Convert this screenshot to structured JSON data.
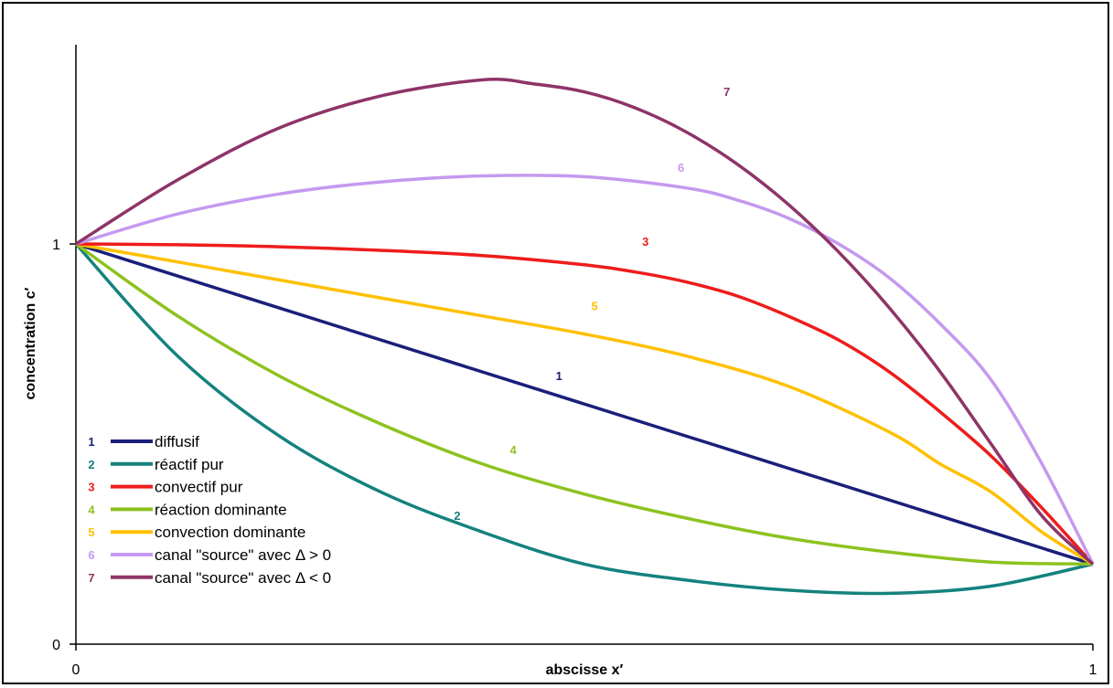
{
  "chart_data": {
    "type": "line",
    "xlabel": "abscisse x′",
    "ylabel": "concentration c′",
    "xlim": [
      0,
      1
    ],
    "ylim": [
      0,
      1.5
    ],
    "x_ticks": [
      "0",
      "1"
    ],
    "y_ticks": [
      "0",
      "1"
    ],
    "grid": false,
    "legend_position": "bottom-left",
    "series": [
      {
        "id": "1",
        "name": "diffusif",
        "color": "#1a1f7a",
        "x": [
          0,
          1
        ],
        "y": [
          1,
          0.2
        ]
      },
      {
        "id": "2",
        "name": "réactif pur",
        "color": "#14827e",
        "x": [
          0,
          0.1,
          0.2,
          0.3,
          0.4,
          0.5,
          0.6,
          0.7,
          0.8,
          0.9,
          1
        ],
        "y": [
          1,
          0.72,
          0.52,
          0.38,
          0.28,
          0.2,
          0.16,
          0.135,
          0.127,
          0.145,
          0.2
        ]
      },
      {
        "id": "3",
        "name": "convectif pur",
        "color": "#ee1c1c",
        "x": [
          0,
          0.1,
          0.2,
          0.3,
          0.4,
          0.5,
          0.55,
          0.6,
          0.65,
          0.7,
          0.75,
          0.8,
          0.85,
          0.9,
          0.95,
          1
        ],
        "y": [
          1,
          0.998,
          0.993,
          0.984,
          0.971,
          0.948,
          0.93,
          0.905,
          0.87,
          0.82,
          0.76,
          0.68,
          0.58,
          0.47,
          0.34,
          0.2
        ]
      },
      {
        "id": "4",
        "name": "réaction dominante",
        "color": "#8dc21f",
        "x": [
          0,
          0.1,
          0.2,
          0.3,
          0.4,
          0.5,
          0.6,
          0.7,
          0.8,
          0.9,
          1
        ],
        "y": [
          1,
          0.82,
          0.67,
          0.55,
          0.45,
          0.375,
          0.315,
          0.265,
          0.23,
          0.205,
          0.2
        ]
      },
      {
        "id": "5",
        "name": "convection dominante",
        "color": "#ffc000",
        "x": [
          0,
          0.1,
          0.2,
          0.3,
          0.4,
          0.5,
          0.6,
          0.7,
          0.8,
          0.85,
          0.9,
          0.95,
          1
        ],
        "y": [
          1,
          0.955,
          0.91,
          0.865,
          0.82,
          0.775,
          0.72,
          0.645,
          0.53,
          0.45,
          0.38,
          0.28,
          0.2
        ]
      },
      {
        "id": "6",
        "name": "canal \"source\" avec Δ > 0",
        "color": "#c599ef",
        "x": [
          0,
          0.1,
          0.2,
          0.3,
          0.4,
          0.5,
          0.6,
          0.65,
          0.7,
          0.75,
          0.8,
          0.85,
          0.9,
          0.95,
          1
        ],
        "y": [
          1,
          1.075,
          1.125,
          1.155,
          1.17,
          1.168,
          1.14,
          1.11,
          1.065,
          1.0,
          0.915,
          0.8,
          0.66,
          0.45,
          0.2
        ]
      },
      {
        "id": "7",
        "name": "canal \"source\" avec Δ < 0",
        "color": "#8e3467",
        "x": [
          0,
          0.1,
          0.2,
          0.3,
          0.4,
          0.45,
          0.5,
          0.55,
          0.6,
          0.65,
          0.7,
          0.75,
          0.8,
          0.85,
          0.9,
          0.95,
          1
        ],
        "y": [
          1,
          1.16,
          1.29,
          1.37,
          1.41,
          1.4,
          1.38,
          1.34,
          1.28,
          1.2,
          1.1,
          0.98,
          0.84,
          0.68,
          0.5,
          0.32,
          0.2
        ]
      }
    ],
    "series_labels": [
      {
        "series": "1",
        "x": 0.475,
        "y": 0.66
      },
      {
        "series": "2",
        "x": 0.375,
        "y": 0.31
      },
      {
        "series": "3",
        "x": 0.56,
        "y": 0.995
      },
      {
        "series": "4",
        "x": 0.43,
        "y": 0.475
      },
      {
        "series": "5",
        "x": 0.51,
        "y": 0.835
      },
      {
        "series": "6",
        "x": 0.595,
        "y": 1.18
      },
      {
        "series": "7",
        "x": 0.64,
        "y": 1.37
      }
    ]
  }
}
